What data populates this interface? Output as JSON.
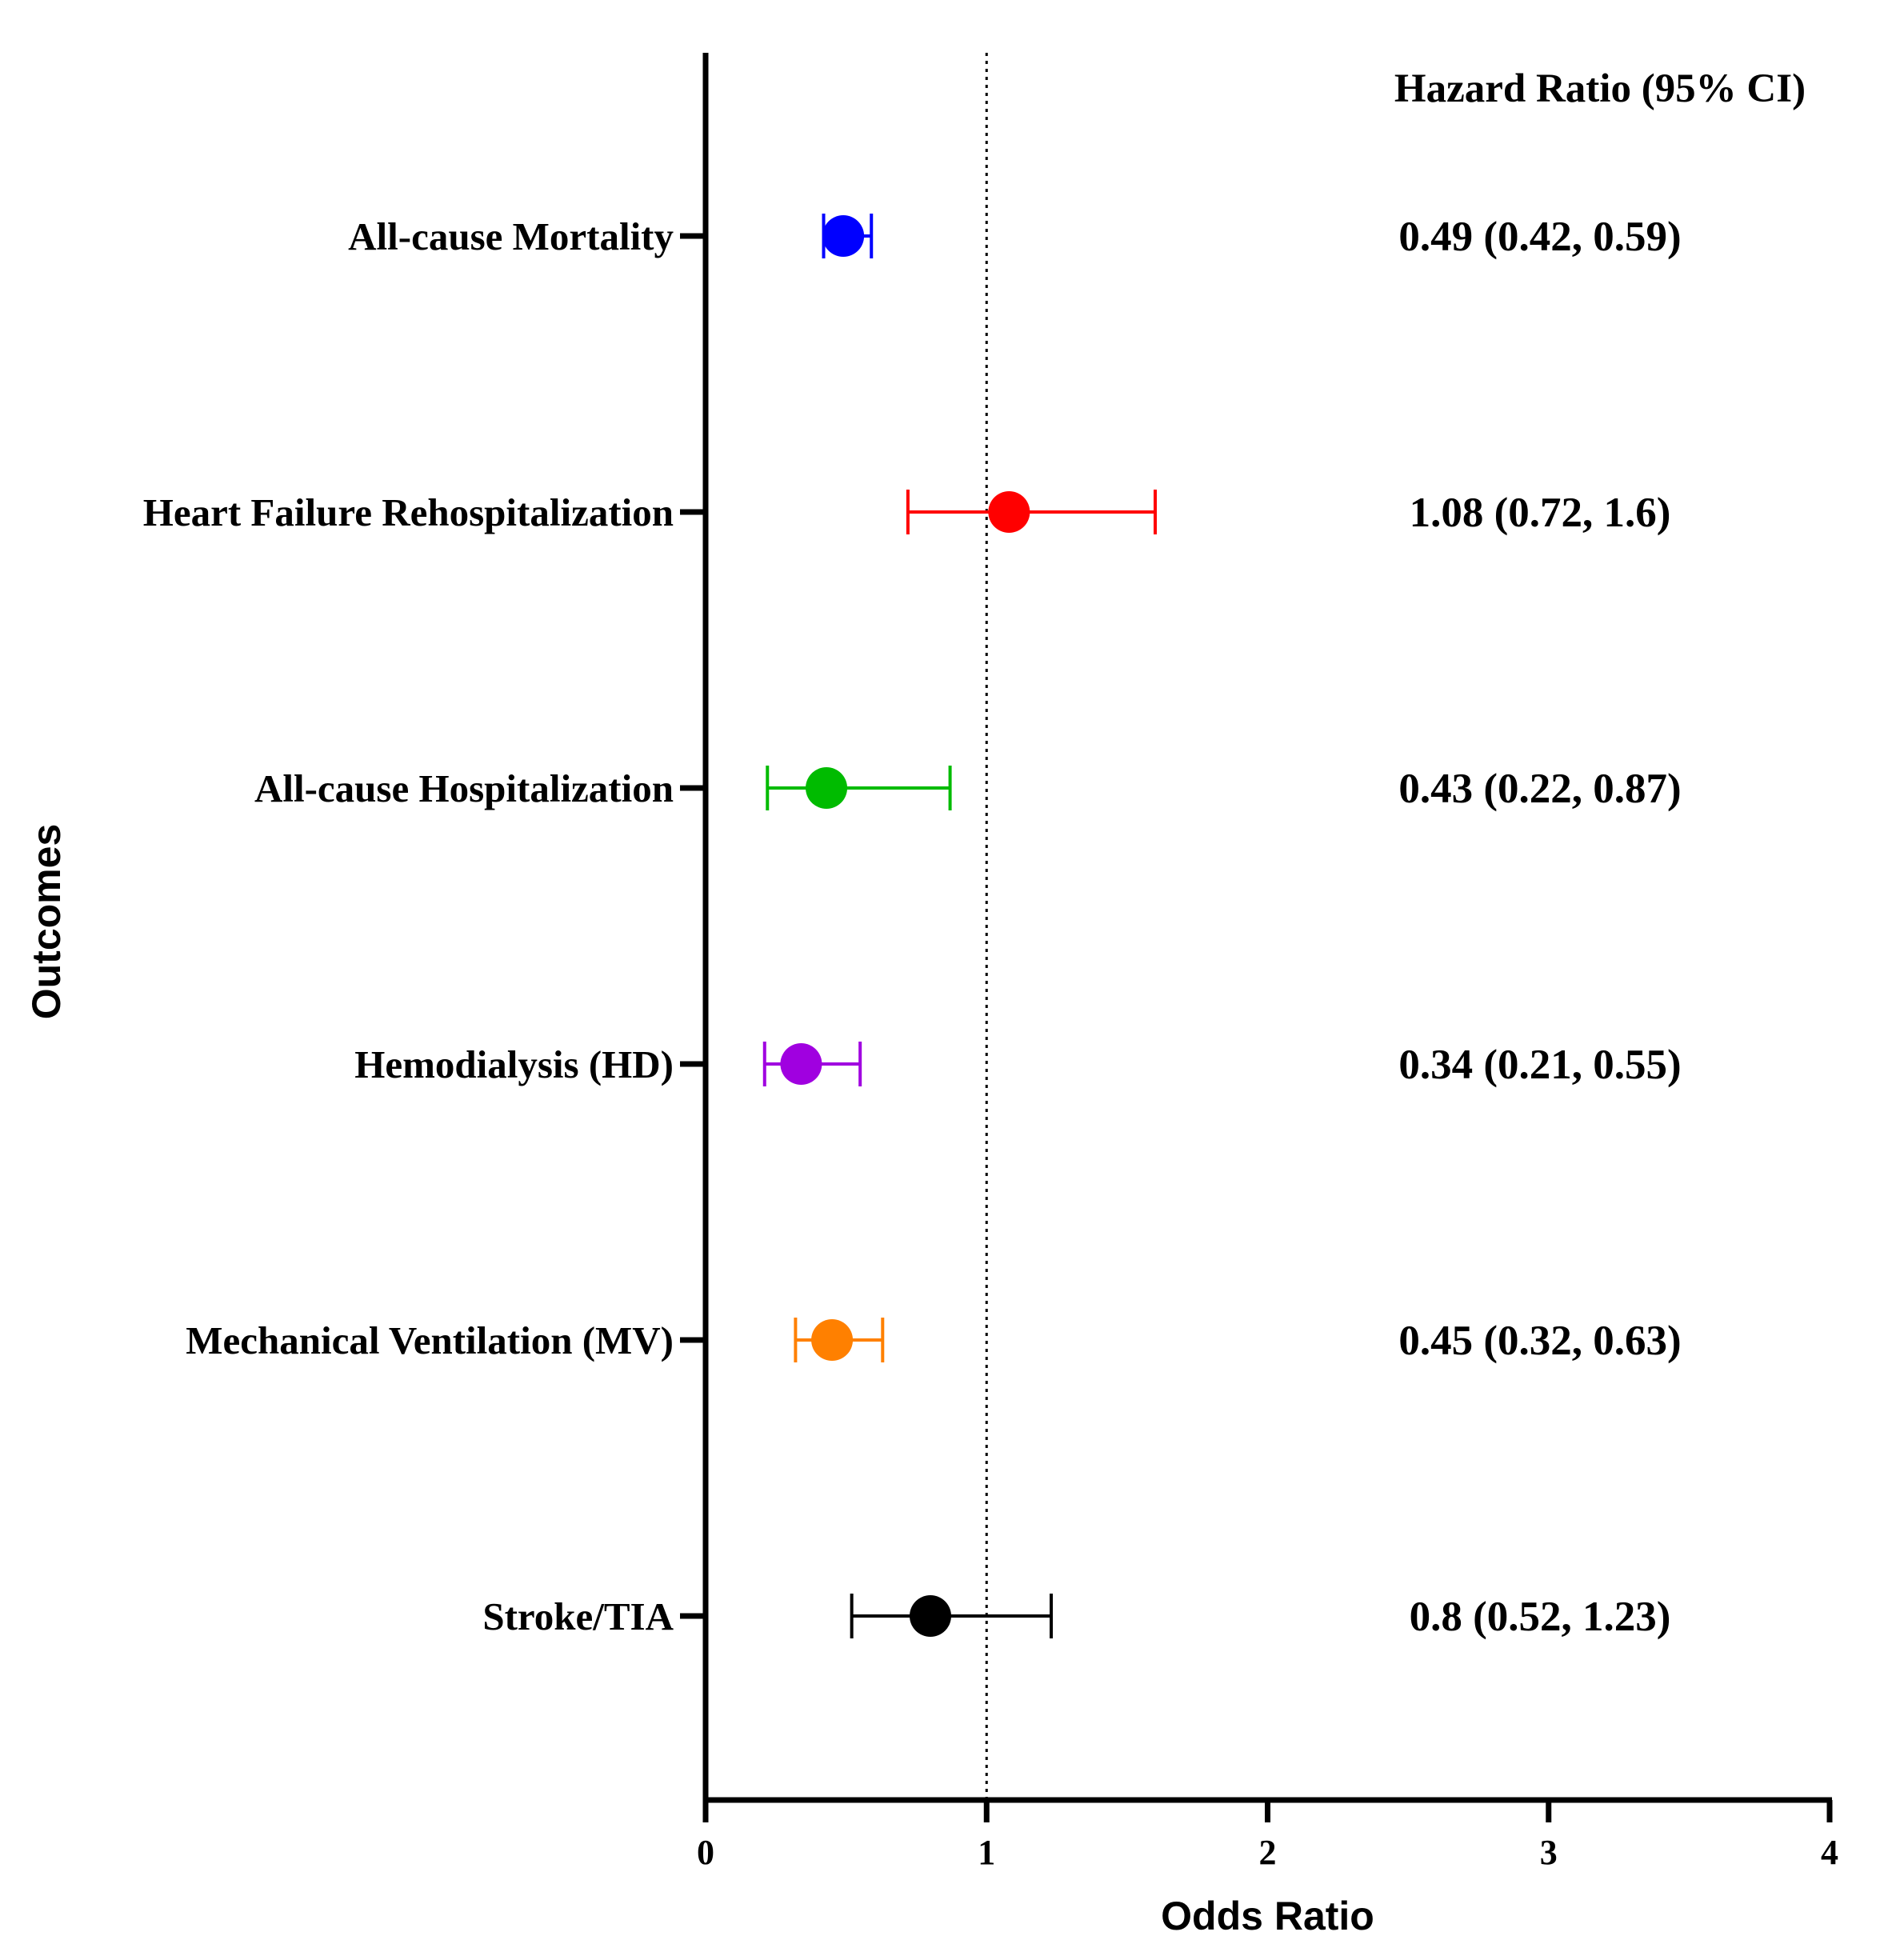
{
  "chart_data": {
    "type": "forest",
    "xlabel": "Odds Ratio",
    "ylabel": "Outcomes",
    "xlim": [
      0,
      4
    ],
    "x_ticks": [
      "0",
      "1",
      "2",
      "3",
      "4"
    ],
    "reference_line": 1,
    "right_column_header": "Hazard Ratio (95% CI)",
    "grid": false,
    "rows": [
      {
        "label": "All-cause Mortality",
        "estimate": 0.49,
        "lower": 0.42,
        "upper": 0.59,
        "text": "0.49 (0.42, 0.59)",
        "color": "#0000ff"
      },
      {
        "label": "Heart Failure Rehospitalization",
        "estimate": 1.08,
        "lower": 0.72,
        "upper": 1.6,
        "text": "1.08 (0.72, 1.6)",
        "color": "#ff0000"
      },
      {
        "label": "All-cause Hospitalization",
        "estimate": 0.43,
        "lower": 0.22,
        "upper": 0.87,
        "text": "0.43 (0.22, 0.87)",
        "color": "#00bb00"
      },
      {
        "label": "Hemodialysis (HD)",
        "estimate": 0.34,
        "lower": 0.21,
        "upper": 0.55,
        "text": "0.34 (0.21, 0.55)",
        "color": "#a000e0"
      },
      {
        "label": "Mechanical Ventilation (MV)",
        "estimate": 0.45,
        "lower": 0.32,
        "upper": 0.63,
        "text": "0.45 (0.32, 0.63)",
        "color": "#ff8000"
      },
      {
        "label": "Stroke/TIA",
        "estimate": 0.8,
        "lower": 0.52,
        "upper": 1.23,
        "text": "0.8 (0.52, 1.23)",
        "color": "#000000"
      }
    ]
  }
}
